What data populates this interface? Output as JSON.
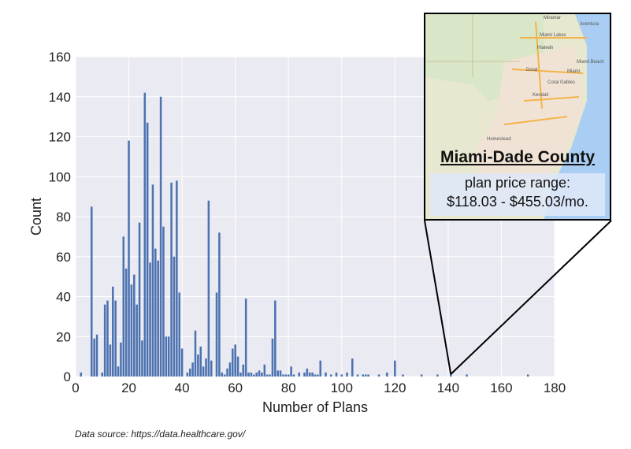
{
  "chart_data": {
    "type": "bar",
    "title": "",
    "xlabel": "Number of Plans",
    "ylabel": "Count",
    "xlim": [
      0,
      180
    ],
    "ylim": [
      0,
      160
    ],
    "xticks": [
      0,
      20,
      40,
      60,
      80,
      100,
      120,
      140,
      160,
      180
    ],
    "yticks": [
      0,
      20,
      40,
      60,
      80,
      100,
      120,
      140,
      160
    ],
    "grid": true,
    "bar_color": "#4c72b0",
    "background_color": "#eaeaf2",
    "x": [
      2,
      6,
      7,
      8,
      10,
      11,
      12,
      13,
      14,
      15,
      16,
      17,
      18,
      19,
      20,
      21,
      22,
      23,
      24,
      25,
      26,
      27,
      28,
      29,
      30,
      31,
      32,
      33,
      34,
      35,
      36,
      37,
      38,
      39,
      40,
      42,
      43,
      44,
      45,
      46,
      47,
      48,
      49,
      50,
      51,
      52,
      53,
      54,
      55,
      56,
      57,
      58,
      59,
      60,
      61,
      62,
      63,
      64,
      65,
      66,
      67,
      68,
      69,
      70,
      71,
      72,
      73,
      74,
      75,
      76,
      77,
      78,
      79,
      80,
      81,
      82,
      84,
      86,
      87,
      88,
      89,
      90,
      91,
      92,
      94,
      96,
      98,
      100,
      102,
      104,
      106,
      108,
      109,
      110,
      114,
      117,
      120,
      123,
      130,
      136,
      141,
      147,
      170
    ],
    "values": [
      2,
      85,
      19,
      21,
      2,
      36,
      38,
      16,
      45,
      38,
      5,
      17,
      70,
      54,
      118,
      46,
      51,
      36,
      77,
      18,
      142,
      127,
      57,
      96,
      64,
      58,
      140,
      75,
      20,
      20,
      97,
      60,
      98,
      42,
      14,
      2,
      4,
      7,
      23,
      11,
      15,
      5,
      9,
      88,
      8,
      0,
      42,
      72,
      2,
      1,
      4,
      7,
      14,
      16,
      10,
      2,
      6,
      39,
      2,
      2,
      1,
      2,
      3,
      2,
      6,
      1,
      1,
      19,
      38,
      3,
      3,
      1,
      1,
      1,
      5,
      1,
      2,
      2,
      4,
      2,
      2,
      1,
      1,
      8,
      2,
      1,
      2,
      1,
      2,
      9,
      1,
      1,
      1,
      1,
      1,
      2,
      8,
      1,
      1,
      1,
      2,
      1,
      1
    ]
  },
  "inset": {
    "title": "Miami-Dade County",
    "subtitle_line1": "plan price range:",
    "subtitle_line2": "$118.03 - $455.03/mo.",
    "highlight_x": 141,
    "map_labels": [
      "Miramar",
      "Aventura",
      "Miami Lakes",
      "Hialeah",
      "Miami Beach",
      "Miami",
      "Doral",
      "Coral Gables",
      "Kendall",
      "Homestead"
    ]
  },
  "source_note": "Data source: https://data.healthcare.gov/"
}
